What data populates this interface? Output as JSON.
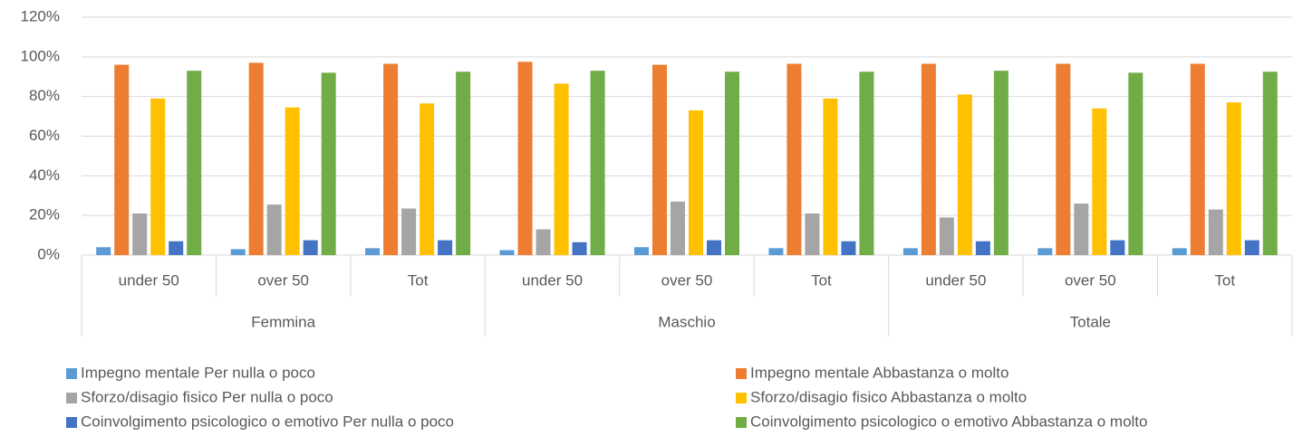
{
  "chart_data": {
    "type": "bar",
    "categories": [
      "under 50",
      "over 50",
      "Tot",
      "under 50",
      "over 50",
      "Tot",
      "under 50",
      "over 50",
      "Tot"
    ],
    "groups": [
      "Femmina",
      "Maschio",
      "Totale"
    ],
    "series": [
      {
        "name": "Impegno mentale Per nulla o poco",
        "color": "#5B9BD5",
        "values": [
          4,
          3,
          3.5,
          2.5,
          4,
          3.5,
          3.5,
          3.5,
          3.5
        ]
      },
      {
        "name": "Impegno mentale Abbastanza o molto",
        "color": "#ED7D31",
        "values": [
          96,
          97,
          96.5,
          97.5,
          96,
          96.5,
          96.5,
          96.5,
          96.5
        ]
      },
      {
        "name": "Sforzo/disagio fisico Per nulla o poco",
        "color": "#A5A5A5",
        "values": [
          21,
          25.5,
          23.5,
          13,
          27,
          21,
          19,
          26,
          23
        ]
      },
      {
        "name": "Sforzo/disagio fisico Abbastanza o molto",
        "color": "#FFC000",
        "values": [
          79,
          74.5,
          76.5,
          86.5,
          73,
          79,
          81,
          74,
          77
        ]
      },
      {
        "name": "Coinvolgimento psicologico o emotivo Per nulla o poco",
        "color": "#4472C4",
        "values": [
          7,
          7.5,
          7.5,
          6.5,
          7.5,
          7,
          7,
          7.5,
          7.5
        ]
      },
      {
        "name": "Coinvolgimento psicologico o emotivo Abbastanza o molto",
        "color": "#70AD47",
        "values": [
          93,
          92,
          92.5,
          93,
          92.5,
          92.5,
          93,
          92,
          92.5
        ]
      }
    ],
    "ylim": [
      0,
      120
    ],
    "yticks": [
      {
        "value": 0,
        "label": "0%"
      },
      {
        "value": 20,
        "label": "20%"
      },
      {
        "value": 40,
        "label": "40%"
      },
      {
        "value": 60,
        "label": "60%"
      },
      {
        "value": 80,
        "label": "80%"
      },
      {
        "value": 100,
        "label": "100%"
      },
      {
        "value": 120,
        "label": "120%"
      }
    ],
    "grid": true,
    "legend": "bottom"
  }
}
